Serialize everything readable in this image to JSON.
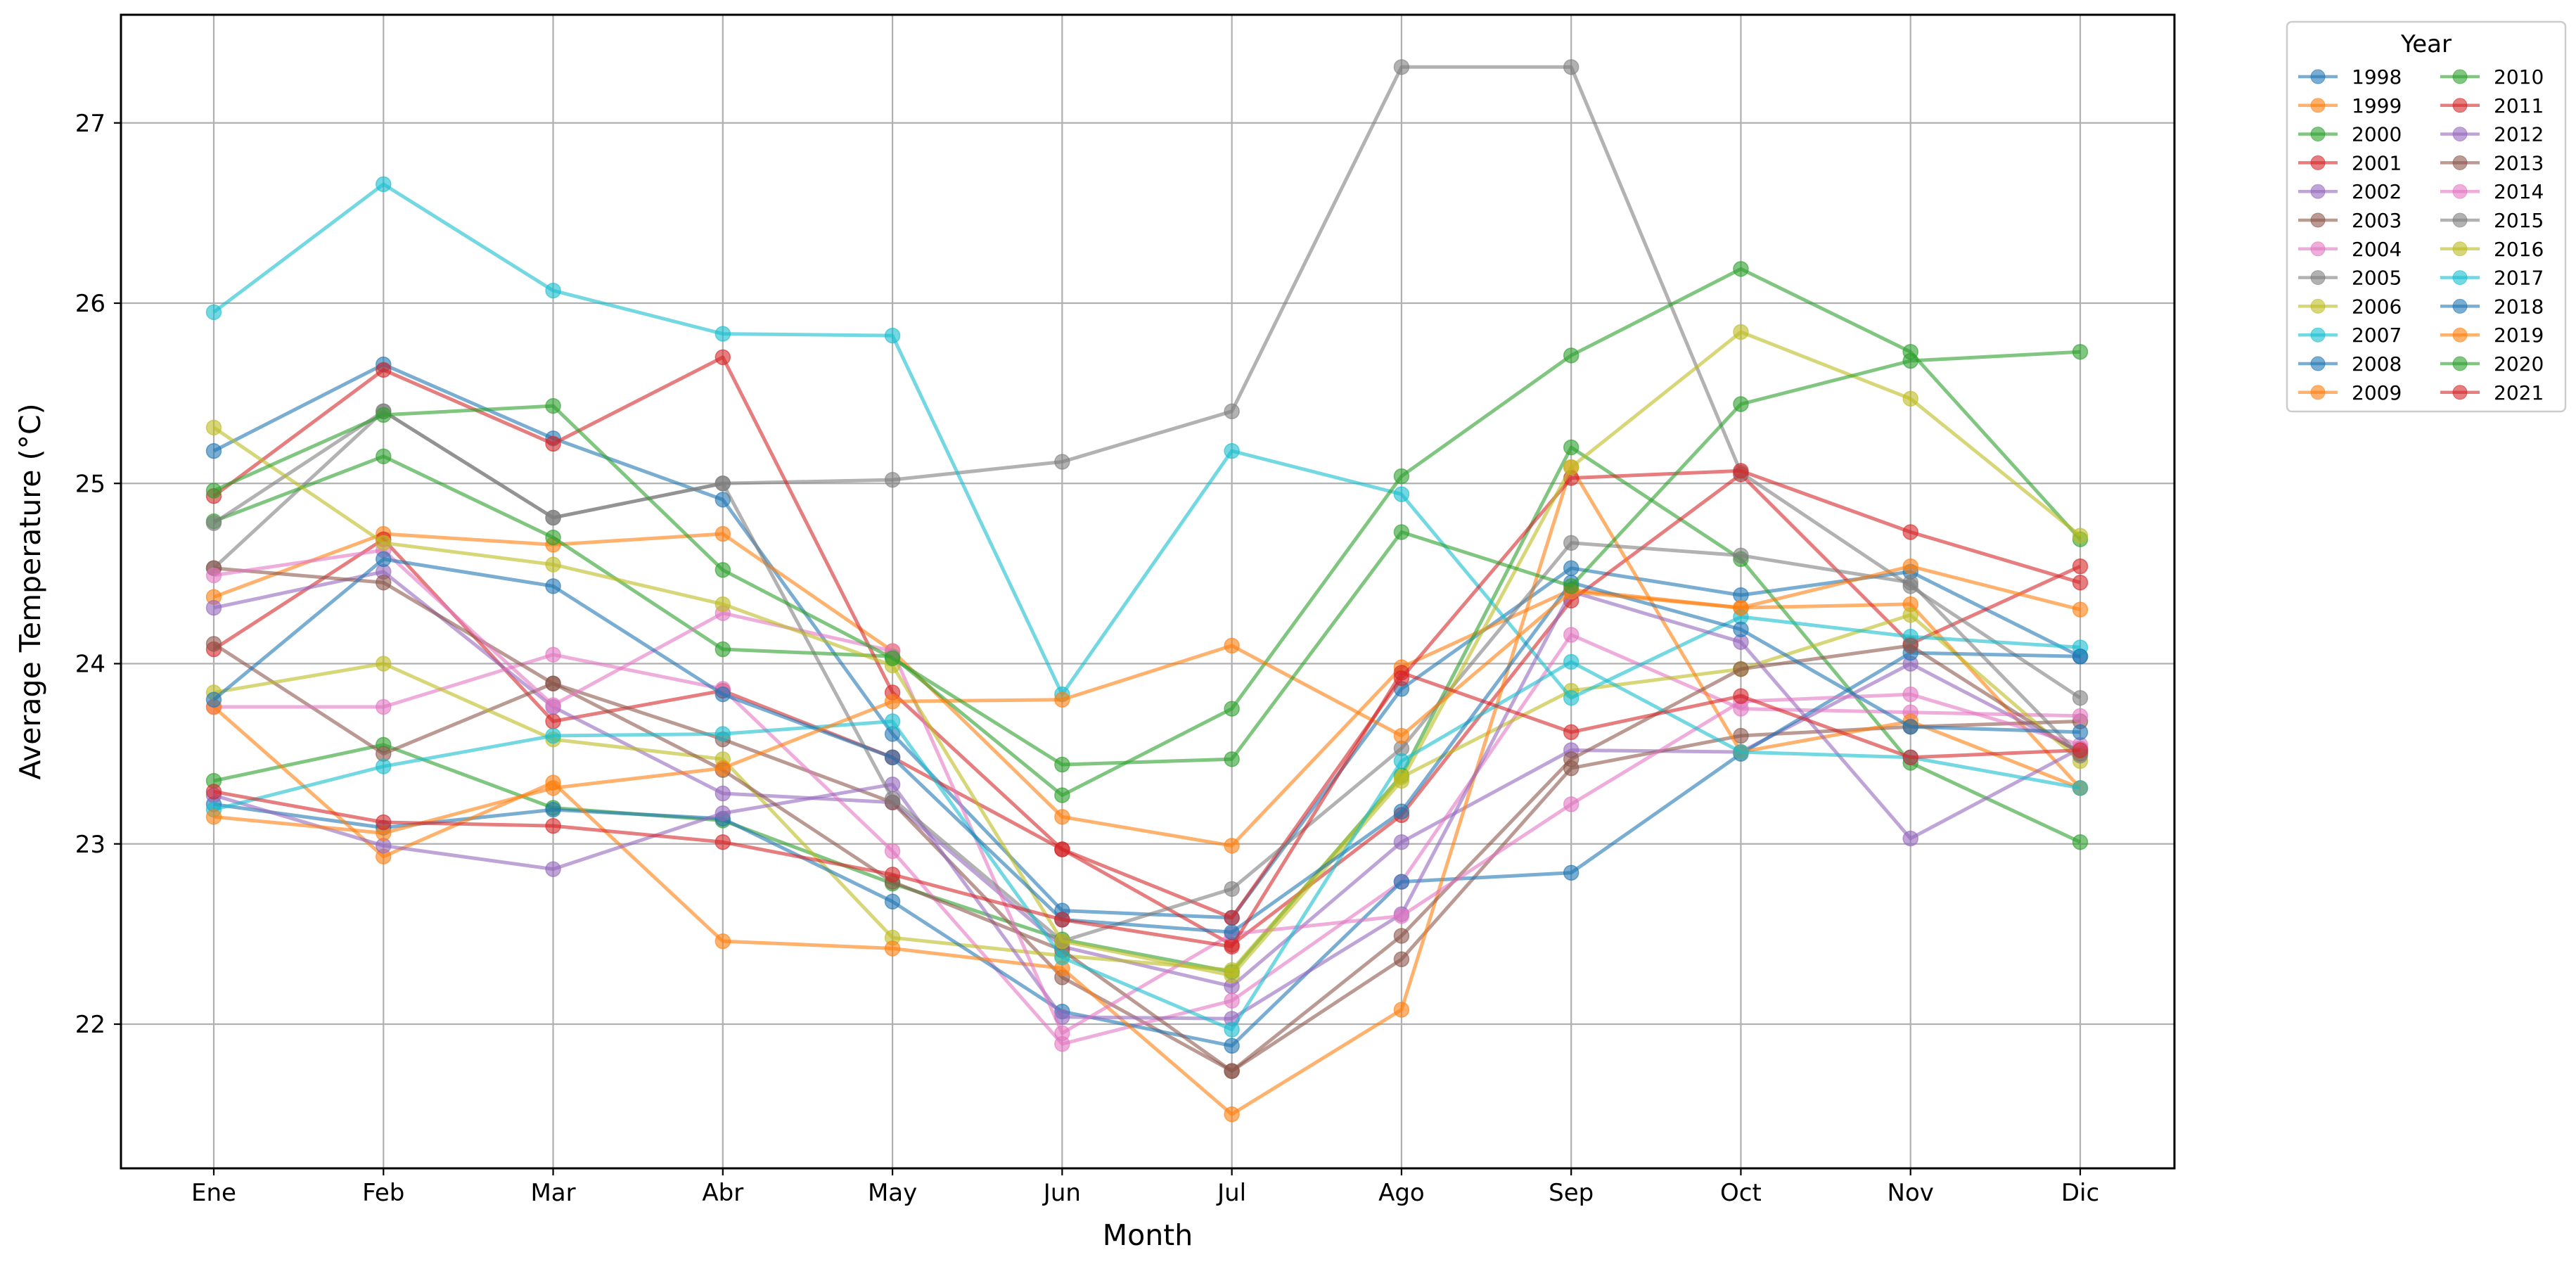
{
  "chart_data": {
    "type": "line",
    "title": "",
    "xlabel": "Month",
    "ylabel": "Average Temperature (°C)",
    "categories": [
      "Ene",
      "Feb",
      "Mar",
      "Abr",
      "May",
      "Jun",
      "Jul",
      "Ago",
      "Sep",
      "Oct",
      "Nov",
      "Dic"
    ],
    "ylim": [
      21.2,
      27.6
    ],
    "yticks": [
      22,
      23,
      24,
      25,
      26,
      27
    ],
    "grid": true,
    "legend": {
      "title": "Year",
      "placement": "outside top-right",
      "columns": 2
    },
    "series": [
      {
        "name": "1998",
        "color": "#1f77b4",
        "values": [
          25.18,
          25.66,
          25.25,
          24.91,
          23.61,
          22.63,
          22.59,
          23.86,
          24.53,
          24.38,
          24.51,
          24.04
        ]
      },
      {
        "name": "1999",
        "color": "#ff7f0e",
        "values": [
          24.37,
          24.72,
          24.66,
          24.72,
          24.07,
          23.15,
          22.99,
          23.98,
          24.41,
          24.31,
          24.33,
          23.31
        ]
      },
      {
        "name": "2000",
        "color": "#2ca02c",
        "values": [
          23.35,
          23.55,
          23.2,
          23.13,
          22.78,
          22.47,
          22.29,
          23.38,
          25.2,
          24.58,
          23.45,
          23.01
        ]
      },
      {
        "name": "2001",
        "color": "#d62728",
        "values": [
          24.08,
          24.69,
          23.68,
          23.85,
          23.48,
          22.97,
          22.44,
          23.16,
          24.35,
          25.05,
          24.11,
          24.54
        ]
      },
      {
        "name": "2002",
        "color": "#9467bd",
        "values": [
          24.31,
          24.51,
          23.76,
          23.28,
          23.23,
          22.43,
          22.21,
          23.01,
          23.52,
          23.51,
          24.0,
          23.51
        ]
      },
      {
        "name": "2003",
        "color": "#8c564b",
        "values": [
          24.11,
          23.5,
          23.89,
          23.58,
          23.23,
          22.26,
          21.74,
          22.36,
          23.42,
          23.6,
          23.65,
          23.68
        ]
      },
      {
        "name": "2004",
        "color": "#e377c2",
        "values": [
          23.76,
          23.76,
          24.05,
          23.86,
          22.96,
          21.89,
          22.13,
          22.79,
          24.16,
          23.75,
          23.73,
          23.71
        ]
      },
      {
        "name": "2005",
        "color": "#7f7f7f",
        "values": [
          24.53,
          25.4,
          24.81,
          25.0,
          25.02,
          25.12,
          25.4,
          27.31,
          27.31,
          25.06,
          24.43,
          23.81
        ]
      },
      {
        "name": "2006",
        "color": "#bcbd22",
        "values": [
          23.84,
          24.0,
          23.58,
          23.47,
          22.48,
          22.38,
          22.3,
          23.37,
          23.85,
          23.97,
          24.27,
          23.46
        ]
      },
      {
        "name": "2007",
        "color": "#17becf",
        "values": [
          25.95,
          26.66,
          26.07,
          25.83,
          25.82,
          23.83,
          25.18,
          24.94,
          23.81,
          24.26,
          24.15,
          24.09
        ]
      },
      {
        "name": "2008",
        "color": "#1f77b4",
        "values": [
          23.22,
          23.09,
          23.19,
          23.14,
          22.68,
          22.07,
          21.88,
          22.79,
          22.84,
          23.5,
          24.06,
          24.04
        ]
      },
      {
        "name": "2009",
        "color": "#ff7f0e",
        "values": [
          23.76,
          22.93,
          23.34,
          22.46,
          22.42,
          22.31,
          21.5,
          22.08,
          25.09,
          23.51,
          23.68,
          23.31
        ]
      },
      {
        "name": "2010",
        "color": "#2ca02c",
        "values": [
          24.79,
          25.15,
          24.7,
          24.08,
          24.04,
          23.27,
          23.75,
          25.04,
          25.71,
          26.19,
          25.73,
          24.69
        ]
      },
      {
        "name": "2011",
        "color": "#d62728",
        "values": [
          24.93,
          25.63,
          25.22,
          25.7,
          23.84,
          22.97,
          22.59,
          23.92,
          25.03,
          25.07,
          24.73,
          24.45
        ]
      },
      {
        "name": "2012",
        "color": "#9467bd",
        "values": [
          23.27,
          22.99,
          22.86,
          23.17,
          23.33,
          22.04,
          22.03,
          22.61,
          24.4,
          24.12,
          23.03,
          23.53
        ]
      },
      {
        "name": "2013",
        "color": "#8c564b",
        "values": [
          24.53,
          24.45,
          23.89,
          23.41,
          22.79,
          22.41,
          21.74,
          22.49,
          23.47,
          23.97,
          24.1,
          23.5
        ]
      },
      {
        "name": "2014",
        "color": "#e377c2",
        "values": [
          24.49,
          24.63,
          23.77,
          24.28,
          24.07,
          21.95,
          22.5,
          22.6,
          23.22,
          23.79,
          23.83,
          23.55
        ]
      },
      {
        "name": "2015",
        "color": "#7f7f7f",
        "values": [
          24.78,
          25.4,
          24.81,
          25.0,
          23.25,
          22.46,
          22.75,
          23.53,
          24.67,
          24.6,
          24.45,
          23.49
        ]
      },
      {
        "name": "2016",
        "color": "#bcbd22",
        "values": [
          25.31,
          24.67,
          24.55,
          24.33,
          23.99,
          22.46,
          22.27,
          23.35,
          25.09,
          25.84,
          25.47,
          24.71
        ]
      },
      {
        "name": "2017",
        "color": "#17becf",
        "values": [
          23.19,
          23.43,
          23.6,
          23.61,
          23.68,
          22.37,
          21.97,
          23.46,
          24.01,
          23.51,
          23.48,
          23.31
        ]
      },
      {
        "name": "2018",
        "color": "#1f77b4",
        "values": [
          23.8,
          24.58,
          24.43,
          23.83,
          23.48,
          22.58,
          22.51,
          23.18,
          24.45,
          24.19,
          23.65,
          23.62
        ]
      },
      {
        "name": "2019",
        "color": "#ff7f0e",
        "values": [
          23.15,
          23.06,
          23.31,
          23.42,
          23.79,
          23.8,
          24.1,
          23.6,
          24.4,
          24.31,
          24.54,
          24.3
        ]
      },
      {
        "name": "2020",
        "color": "#2ca02c",
        "values": [
          24.96,
          25.38,
          25.43,
          24.52,
          24.03,
          23.44,
          23.47,
          24.73,
          24.43,
          25.44,
          25.68,
          25.73
        ]
      },
      {
        "name": "2021",
        "color": "#d62728",
        "values": [
          23.29,
          23.12,
          23.1,
          23.01,
          22.83,
          22.58,
          22.43,
          23.95,
          23.62,
          23.82,
          23.48,
          23.52
        ]
      }
    ]
  }
}
